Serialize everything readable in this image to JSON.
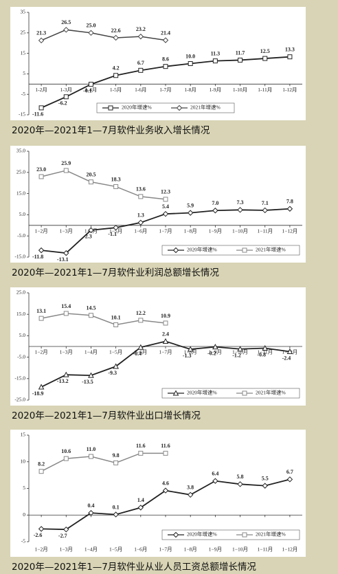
{
  "chart_data": [
    {
      "type": "line",
      "caption": "2020年—2021年1—7月软件业务收入增长情况",
      "categories": [
        "1-2月",
        "1-3月",
        "1-4月",
        "1-5月",
        "1-6月",
        "1-7月",
        "1-8月",
        "1-9月",
        "1-10月",
        "1-11月",
        "1-12月"
      ],
      "ylim": [
        -15,
        35
      ],
      "yticks": [
        -15,
        -5,
        5,
        15,
        25,
        35
      ],
      "legend": "lower center",
      "series": [
        {
          "name": "2020年增速%",
          "color": "#222222",
          "marker": "square",
          "values": [
            -11.6,
            -6.2,
            -0.1,
            4.2,
            6.7,
            8.6,
            10.0,
            11.3,
            11.7,
            12.5,
            13.3
          ],
          "value_labels": [
            "-11.6",
            "-6.2",
            "-0.1",
            "4.2",
            "6.7",
            "8.6",
            "10.0",
            "11.3",
            "11.7",
            "12.5",
            "13.3"
          ]
        },
        {
          "name": "2021年增速%",
          "color": "#444444",
          "marker": "diamond",
          "values": [
            21.3,
            26.5,
            25.0,
            22.6,
            23.2,
            21.4,
            null,
            null,
            null,
            null,
            null
          ],
          "value_labels": [
            "21.3",
            "26.5",
            "25.0",
            "22.6",
            "23.2",
            "21.4",
            null,
            null,
            null,
            null,
            null
          ]
        }
      ]
    },
    {
      "type": "line",
      "caption": "2020年—2021年1—7月软件业利润总额增长情况",
      "categories": [
        "1−2月",
        "1−3月",
        "1−4月",
        "1−5月",
        "1−6月",
        "1−7月",
        "1−8月",
        "1−9月",
        "1−10月",
        "1−11月",
        "1−12月"
      ],
      "ylim": [
        -15,
        35
      ],
      "yticks": [
        {
          "value": -15,
          "label": "-15.0"
        },
        {
          "value": -5,
          "label": "-5.0"
        },
        {
          "value": 5,
          "label": "5.0"
        },
        {
          "value": 15,
          "label": "15.0"
        },
        {
          "value": 25,
          "label": "25.0"
        },
        {
          "value": 35,
          "label": "35.0"
        }
      ],
      "legend": "lower right",
      "series": [
        {
          "name": "2020年增速%",
          "color": "#222222",
          "marker": "diamond",
          "values": [
            -11.8,
            -13.1,
            -2.3,
            -1.1,
            1.3,
            5.4,
            5.9,
            7.0,
            7.3,
            7.1,
            7.8
          ],
          "value_labels": [
            "-11.8",
            "-13.1",
            "-2.3",
            "-1.1",
            "1.3",
            "5.4",
            "5.9",
            "7.0",
            "7.3",
            "7.1",
            "7.8"
          ]
        },
        {
          "name": "2021年增速%",
          "color": "#888888",
          "marker": "square",
          "values": [
            23.0,
            25.9,
            20.5,
            18.3,
            13.6,
            12.3,
            null,
            null,
            null,
            null,
            null
          ],
          "value_labels": [
            "23.0",
            "25.9",
            "20.5",
            "18.3",
            "13.6",
            "12.3",
            null,
            null,
            null,
            null,
            null
          ]
        }
      ]
    },
    {
      "type": "line",
      "caption": "2020年—2021年1—7月软件业出口增长情况",
      "categories": [
        "1−2月",
        "1−3月",
        "1−4月",
        "1−5月",
        "1−6月",
        "1−7月",
        "1−8月",
        "1−9月",
        "1−10月",
        "1−11月",
        "1−12月"
      ],
      "ylim": [
        -25,
        25
      ],
      "yticks": [
        {
          "value": -25,
          "label": "-25.0"
        },
        {
          "value": -15,
          "label": "-15.0"
        },
        {
          "value": -5,
          "label": "-5.0"
        },
        {
          "value": 5,
          "label": "5.0"
        },
        {
          "value": 15,
          "label": "15.0"
        },
        {
          "value": 25,
          "label": "25.0"
        }
      ],
      "legend": "lower right",
      "series": [
        {
          "name": "2020年增速%",
          "color": "#222222",
          "marker": "triangle",
          "values": [
            -18.9,
            -13.2,
            -13.5,
            -9.3,
            -0.4,
            2.4,
            -1.3,
            -0.2,
            -1.2,
            -0.8,
            -2.4
          ],
          "value_labels": [
            "-18.9",
            "-13.2",
            "-13.5",
            "-9.3",
            "-0.4",
            "2.4",
            "-1.3",
            "-0.2",
            "-1.2",
            "-0.8",
            "-2.4"
          ]
        },
        {
          "name": "2021年增速%",
          "color": "#888888",
          "marker": "square",
          "values": [
            13.1,
            15.4,
            14.5,
            10.1,
            12.2,
            10.9,
            null,
            null,
            null,
            null,
            null
          ],
          "value_labels": [
            "13.1",
            "15.4",
            "14.5",
            "10.1",
            "12.2",
            "10.9",
            null,
            null,
            null,
            null,
            null
          ]
        }
      ]
    },
    {
      "type": "line",
      "caption": "2020年—2021年1—7月软件业从业人员工资总额增长情况",
      "categories": [
        "1−2月",
        "1−3月",
        "1−4月",
        "1−5月",
        "1−6月",
        "1−7月",
        "1−8月",
        "1−9月",
        "1−10月",
        "1−11月",
        "1−12月"
      ],
      "ylim": [
        -5,
        15
      ],
      "yticks": [
        -5,
        0,
        5,
        10,
        15
      ],
      "legend": "lower right",
      "series": [
        {
          "name": "2020年增速%",
          "color": "#222222",
          "marker": "diamond",
          "values": [
            -2.6,
            -2.7,
            0.4,
            0.1,
            1.4,
            4.6,
            3.8,
            6.4,
            5.8,
            5.5,
            6.7
          ],
          "value_labels": [
            "-2.6",
            "-2.7",
            "0.4",
            "0.1",
            "1.4",
            "4.6",
            "3.8",
            "6.4",
            "5.8",
            "5.5",
            "6.7"
          ]
        },
        {
          "name": "2021年增速%",
          "color": "#888888",
          "marker": "square",
          "values": [
            8.2,
            10.6,
            11.0,
            9.8,
            11.6,
            11.6,
            null,
            null,
            null,
            null,
            null
          ],
          "value_labels": [
            "8.2",
            "10.6",
            "11.0",
            "9.8",
            "11.6",
            "11.6",
            null,
            null,
            null,
            null,
            null
          ]
        }
      ]
    }
  ]
}
